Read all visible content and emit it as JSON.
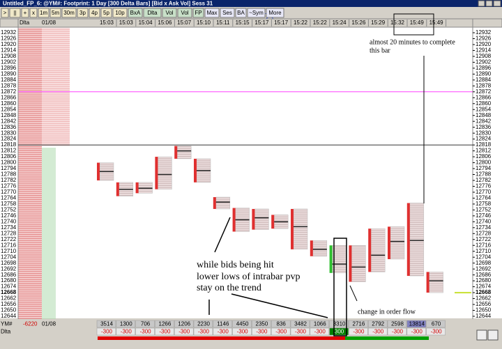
{
  "window_title": "Untitled_FP_6: @YM#: Footprint: 1 Day [300 Delta Bars] [Bid x Ask Vol] Sess 31",
  "toolbar": [
    ">",
    "||",
    "+",
    "x",
    "1m",
    "5m",
    "30m",
    "3p",
    "4p",
    "5p",
    "10p",
    "BxA",
    "Dlta",
    "Vol",
    "Vol",
    "FP",
    "Max",
    "Ses",
    "BA",
    "~Sym",
    "More"
  ],
  "chart_data": {
    "type": "footprint",
    "header_left": [
      "Dlta",
      "01/08"
    ],
    "categories": [
      "15:03",
      "15:03",
      "15:04",
      "15:06",
      "15:07",
      "15:10",
      "15:11",
      "15:15",
      "15:17",
      "15:17",
      "15:22",
      "15:22",
      "15:24",
      "15:26",
      "15:29",
      "15:32",
      "15:49",
      "15:49"
    ],
    "high": [
      12800,
      12780,
      12780,
      12806,
      12817,
      12804,
      12765,
      12754,
      12753,
      12747,
      12753,
      12721,
      12716,
      12716,
      12733,
      12735,
      12759,
      12689
    ],
    "low": [
      12782,
      12766,
      12769,
      12773,
      12804,
      12780,
      12753,
      12730,
      12732,
      12733,
      12712,
      12705,
      12688,
      12679,
      12689,
      12702,
      12685,
      12668
    ],
    "poc": [
      12791,
      12773,
      12774,
      12788,
      12812,
      12792,
      12760,
      12742,
      12744,
      12740,
      12735,
      12712,
      12697,
      12694,
      12706,
      12720,
      12721,
      12680
    ],
    "volume": [
      3514,
      1300,
      706,
      1266,
      1206,
      2230,
      1146,
      4450,
      2350,
      836,
      3482,
      1066,
      3310,
      2716,
      2792,
      2598,
      13814,
      670
    ],
    "delta": [
      -300,
      -300,
      -300,
      -300,
      -300,
      -300,
      -300,
      -300,
      -300,
      -300,
      -300,
      -300,
      300,
      -300,
      -300,
      -300,
      -300,
      -300
    ],
    "ylim": [
      12644,
      12932
    ],
    "yticks": [
      12932,
      12926,
      12920,
      12914,
      12908,
      12902,
      12896,
      12890,
      12884,
      12878,
      12872,
      12866,
      12860,
      12854,
      12848,
      12842,
      12836,
      12830,
      12824,
      12818,
      12812,
      12806,
      12800,
      12794,
      12788,
      12782,
      12776,
      12770,
      12764,
      12758,
      12752,
      12746,
      12740,
      12734,
      12728,
      12722,
      12716,
      12710,
      12704,
      12698,
      12692,
      12686,
      12680,
      12674,
      12668,
      12662,
      12656,
      12650,
      12644
    ],
    "hlines": [
      {
        "value": 12872,
        "color": "#ff40ff"
      },
      {
        "value": 12818,
        "color": "#333333"
      }
    ],
    "last_price": 12668,
    "footer_left": [
      "YM#",
      "-6220",
      "01/08"
    ],
    "footer_delta_label": "Dlta"
  },
  "annotations": [
    "almost 20 minutes to complete",
    "this bar",
    "while bids being hit",
    "lower lows of intrabar pvp",
    "stay on the trend",
    "change in order flow"
  ]
}
